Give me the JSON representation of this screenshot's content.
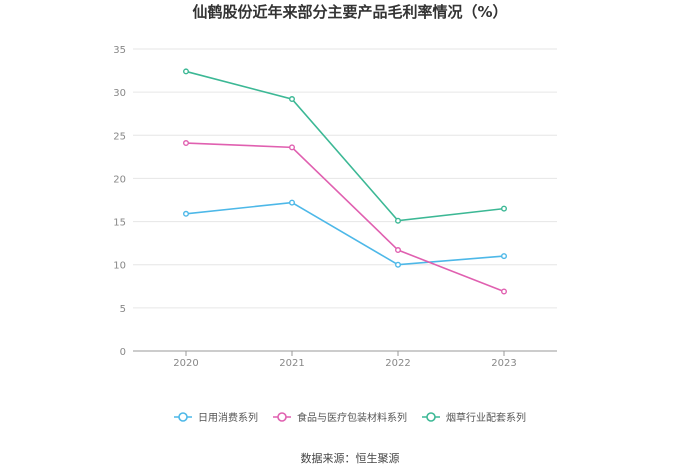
{
  "title": "仙鹤股份近年来部分主要产品毛利率情况（%）",
  "source": "数据来源：恒生聚源",
  "chart_data": {
    "type": "line",
    "title": "仙鹤股份近年来部分主要产品毛利率情况（%）",
    "x": [
      "2020",
      "2021",
      "2022",
      "2023"
    ],
    "ylim": [
      0,
      35
    ],
    "yticks": [
      0,
      5,
      10,
      15,
      20,
      25,
      30,
      35
    ],
    "grid": true,
    "legend_position": "bottom",
    "series": [
      {
        "name": "日用消费系列",
        "color": "#4db8e8",
        "values": [
          15.9,
          17.2,
          10.0,
          11.0
        ]
      },
      {
        "name": "食品与医疗包装材料系列",
        "color": "#e060b0",
        "values": [
          24.1,
          23.6,
          11.7,
          6.9
        ]
      },
      {
        "name": "烟草行业配套系列",
        "color": "#3cb895",
        "values": [
          32.4,
          29.2,
          15.1,
          16.5
        ]
      }
    ]
  }
}
